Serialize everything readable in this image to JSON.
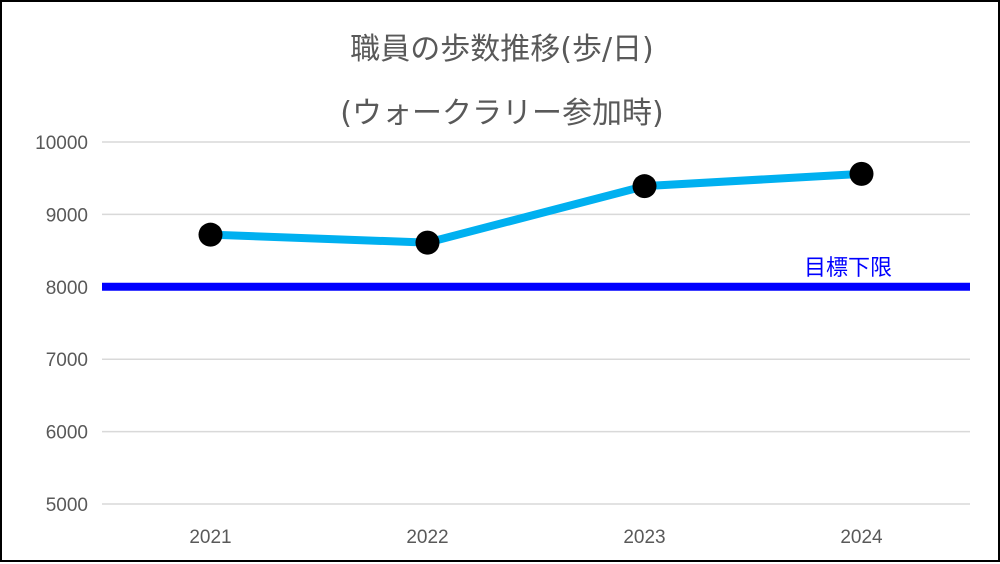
{
  "chart_data": {
    "type": "line",
    "title": "職員の歩数推移(歩/日)",
    "subtitle": "(ウォークラリー参加時)",
    "categories": [
      "2021",
      "2022",
      "2023",
      "2024"
    ],
    "series": [
      {
        "values": [
          8720,
          8610,
          9390,
          9560
        ],
        "color": "#00b0f0",
        "marker_color": "#000000"
      }
    ],
    "reference_line": {
      "label": "目標下限",
      "value": 8000,
      "color": "#0000ff"
    },
    "ylim": [
      5000,
      10000
    ],
    "yticks": [
      5000,
      6000,
      7000,
      8000,
      9000,
      10000
    ],
    "grid": true,
    "legend": "none"
  }
}
